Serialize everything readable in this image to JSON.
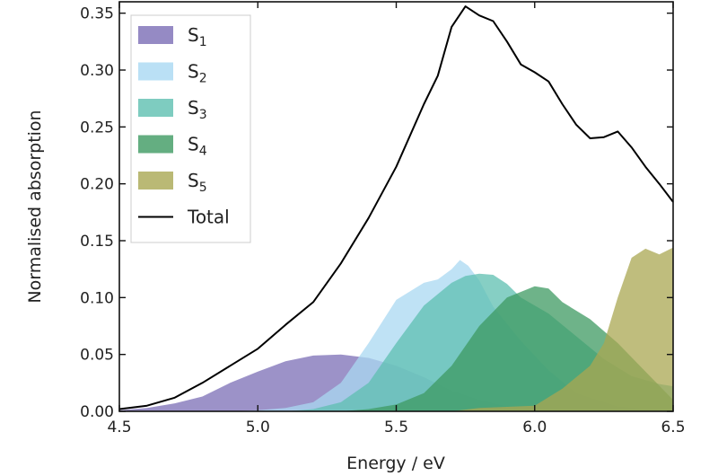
{
  "chart_data": {
    "type": "area",
    "xlabel": "Energy / eV",
    "ylabel": "Normalised absorption",
    "xlim": [
      4.5,
      6.5
    ],
    "ylim": [
      0.0,
      0.36
    ],
    "xticks": [
      "4.5",
      "5.0",
      "5.5",
      "6.0",
      "6.5"
    ],
    "yticks": [
      "0.00",
      "0.05",
      "0.10",
      "0.15",
      "0.20",
      "0.25",
      "0.30",
      "0.35"
    ],
    "grid": false,
    "legend_position": "top-left",
    "series": [
      {
        "name": "S",
        "sub": "1",
        "kind": "area",
        "color": "#7b6db5",
        "x": [
          4.5,
          4.6,
          4.7,
          4.8,
          4.9,
          5.0,
          5.1,
          5.2,
          5.3,
          5.4,
          5.5,
          5.6,
          5.7,
          5.8,
          5.9,
          6.0,
          6.1
        ],
        "y": [
          0.001,
          0.003,
          0.007,
          0.013,
          0.025,
          0.035,
          0.044,
          0.049,
          0.05,
          0.047,
          0.04,
          0.03,
          0.018,
          0.01,
          0.004,
          0.001,
          0.0
        ]
      },
      {
        "name": "S",
        "sub": "2",
        "kind": "area",
        "color": "#a9d8f2",
        "x": [
          4.9,
          5.0,
          5.1,
          5.2,
          5.3,
          5.4,
          5.5,
          5.6,
          5.65,
          5.7,
          5.73,
          5.76,
          5.8,
          5.85,
          5.95,
          6.05,
          6.15,
          6.3,
          6.5
        ],
        "y": [
          0.0,
          0.001,
          0.003,
          0.008,
          0.025,
          0.06,
          0.098,
          0.113,
          0.116,
          0.125,
          0.133,
          0.128,
          0.115,
          0.092,
          0.062,
          0.036,
          0.016,
          0.004,
          0.0
        ]
      },
      {
        "name": "S",
        "sub": "3",
        "kind": "area",
        "color": "#5ebfb0",
        "x": [
          5.1,
          5.2,
          5.3,
          5.4,
          5.5,
          5.6,
          5.7,
          5.75,
          5.8,
          5.85,
          5.9,
          5.95,
          6.05,
          6.15,
          6.25,
          6.35,
          6.45,
          6.5
        ],
        "y": [
          0.0,
          0.002,
          0.008,
          0.025,
          0.06,
          0.093,
          0.113,
          0.119,
          0.121,
          0.12,
          0.112,
          0.1,
          0.086,
          0.066,
          0.046,
          0.031,
          0.024,
          0.022
        ]
      },
      {
        "name": "S",
        "sub": "4",
        "kind": "area",
        "color": "#3d9a62",
        "x": [
          5.3,
          5.4,
          5.5,
          5.6,
          5.7,
          5.8,
          5.9,
          6.0,
          6.05,
          6.1,
          6.2,
          6.3,
          6.4,
          6.5
        ],
        "y": [
          0.0,
          0.002,
          0.006,
          0.016,
          0.04,
          0.075,
          0.1,
          0.11,
          0.108,
          0.096,
          0.081,
          0.06,
          0.035,
          0.01
        ]
      },
      {
        "name": "S",
        "sub": "5",
        "kind": "area",
        "color": "#a9a752",
        "x": [
          5.7,
          5.8,
          6.0,
          6.1,
          6.15,
          6.2,
          6.25,
          6.3,
          6.35,
          6.4,
          6.45,
          6.5
        ],
        "y": [
          0.0,
          0.003,
          0.005,
          0.02,
          0.03,
          0.04,
          0.06,
          0.1,
          0.135,
          0.143,
          0.138,
          0.144
        ]
      },
      {
        "name": "Total",
        "kind": "line",
        "color": "#000000",
        "x": [
          4.5,
          4.6,
          4.7,
          4.8,
          4.9,
          5.0,
          5.1,
          5.2,
          5.3,
          5.4,
          5.5,
          5.6,
          5.65,
          5.7,
          5.75,
          5.8,
          5.85,
          5.9,
          5.95,
          6.0,
          6.05,
          6.1,
          6.15,
          6.2,
          6.25,
          6.3,
          6.35,
          6.4,
          6.45,
          6.5
        ],
        "y": [
          0.002,
          0.005,
          0.012,
          0.025,
          0.04,
          0.055,
          0.076,
          0.096,
          0.13,
          0.17,
          0.215,
          0.27,
          0.295,
          0.338,
          0.356,
          0.348,
          0.343,
          0.325,
          0.305,
          0.298,
          0.29,
          0.27,
          0.252,
          0.24,
          0.241,
          0.246,
          0.232,
          0.215,
          0.2,
          0.184
        ]
      }
    ]
  }
}
